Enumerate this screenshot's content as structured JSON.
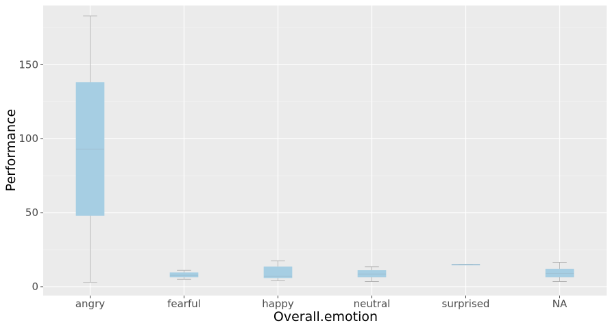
{
  "chart_data": {
    "type": "boxplot",
    "title": "",
    "xlabel": "Overall.emotion",
    "ylabel": "Performance",
    "categories": [
      "angry",
      "fearful",
      "happy",
      "neutral",
      "surprised",
      "NA"
    ],
    "boxes": [
      {
        "category": "angry",
        "min": 3,
        "q1": 48,
        "median": 93,
        "q3": 138,
        "max": 183
      },
      {
        "category": "fearful",
        "min": 5,
        "q1": 6.5,
        "median": 7.8,
        "q3": 9.5,
        "max": 11
      },
      {
        "category": "happy",
        "min": 4,
        "q1": 6,
        "median": 7,
        "q3": 13.5,
        "max": 17.5
      },
      {
        "category": "neutral",
        "min": 3.5,
        "q1": 6.5,
        "median": 8.5,
        "q3": 11,
        "max": 13.5
      },
      {
        "category": "surprised",
        "min": 15,
        "q1": 15,
        "median": 15,
        "q3": 15,
        "max": 15
      },
      {
        "category": "NA",
        "min": 3.5,
        "q1": 6.5,
        "median": 9,
        "q3": 12,
        "max": 16.5
      }
    ],
    "ylim": [
      -6,
      190
    ],
    "yticks": [
      0,
      50,
      100,
      150
    ],
    "grid": true,
    "legend": "none",
    "colors": {
      "panel_background": "#ebebeb",
      "grid_major": "#ffffff",
      "box_fill": "#a6cee3",
      "whisker": "#b3b3b3",
      "median": "#9ebed1"
    }
  }
}
